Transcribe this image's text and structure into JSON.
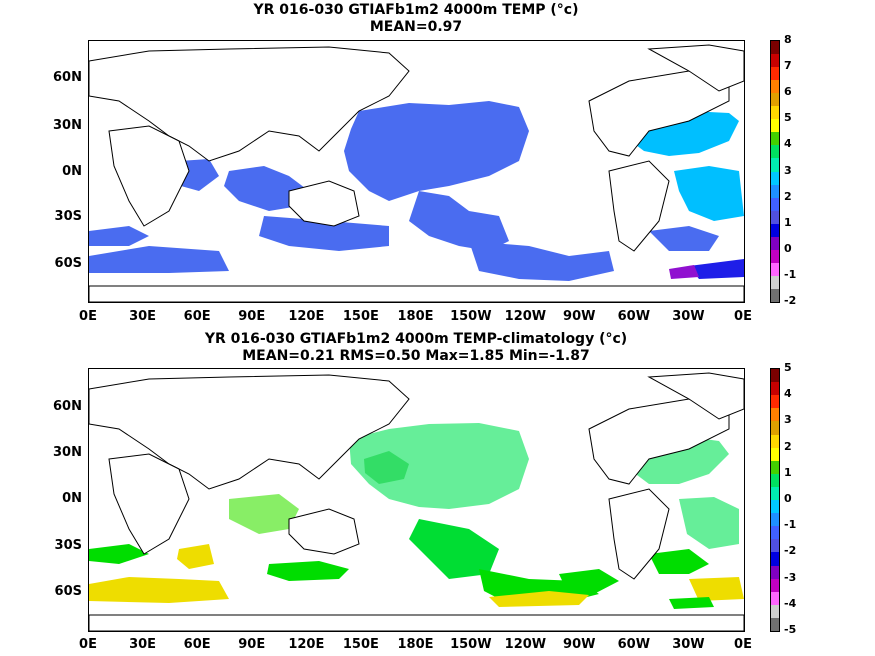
{
  "panels": [
    {
      "title_line1": "YR 016-030 GTIAFb1m2 4000m TEMP (°c)",
      "title_line2": "MEAN=0.97",
      "lat_labels": [
        "60N",
        "30N",
        "0N",
        "30S",
        "60S"
      ],
      "lon_labels": [
        "0E",
        "30E",
        "60E",
        "90E",
        "120E",
        "150E",
        "180E",
        "150W",
        "120W",
        "90W",
        "60W",
        "30W",
        "0E"
      ],
      "colorbar": {
        "ticks": [
          "8",
          "7",
          "6",
          "5",
          "4",
          "3",
          "2",
          "1",
          "0",
          "-1",
          "-2"
        ],
        "colors": [
          "#7a0000",
          "#c80000",
          "#ff2a00",
          "#ff8000",
          "#e0a000",
          "#ffd800",
          "#ffff00",
          "#44d000",
          "#00e060",
          "#00eeb0",
          "#00c8ff",
          "#1e90ff",
          "#4060ff",
          "#5050e0",
          "#0000e0",
          "#8000c0",
          "#c000c0",
          "#ff66ff",
          "#d0d0d0",
          "#707070"
        ]
      }
    },
    {
      "title_line1": "YR 016-030 GTIAFb1m2 4000m TEMP-climatology (°c)",
      "title_line2": "MEAN=0.21   RMS=0.50   Max=1.85   Min=-1.87",
      "lat_labels": [
        "60N",
        "30N",
        "0N",
        "30S",
        "60S"
      ],
      "lon_labels": [
        "0E",
        "30E",
        "60E",
        "90E",
        "120E",
        "150E",
        "180E",
        "150W",
        "120W",
        "90W",
        "60W",
        "30W",
        "0E"
      ],
      "colorbar": {
        "ticks": [
          "5",
          "4",
          "3",
          "2",
          "1",
          "0",
          "-1",
          "-2",
          "-3",
          "-4",
          "-5"
        ],
        "colors": [
          "#7a0000",
          "#c80000",
          "#ff2a00",
          "#ff8000",
          "#e0a000",
          "#ffd800",
          "#ffff00",
          "#44d000",
          "#00e060",
          "#00eeb0",
          "#00c8ff",
          "#1e90ff",
          "#4060ff",
          "#5050e0",
          "#0000e0",
          "#8000c0",
          "#c000c0",
          "#ff66ff",
          "#d0d0d0",
          "#707070"
        ]
      }
    }
  ]
}
